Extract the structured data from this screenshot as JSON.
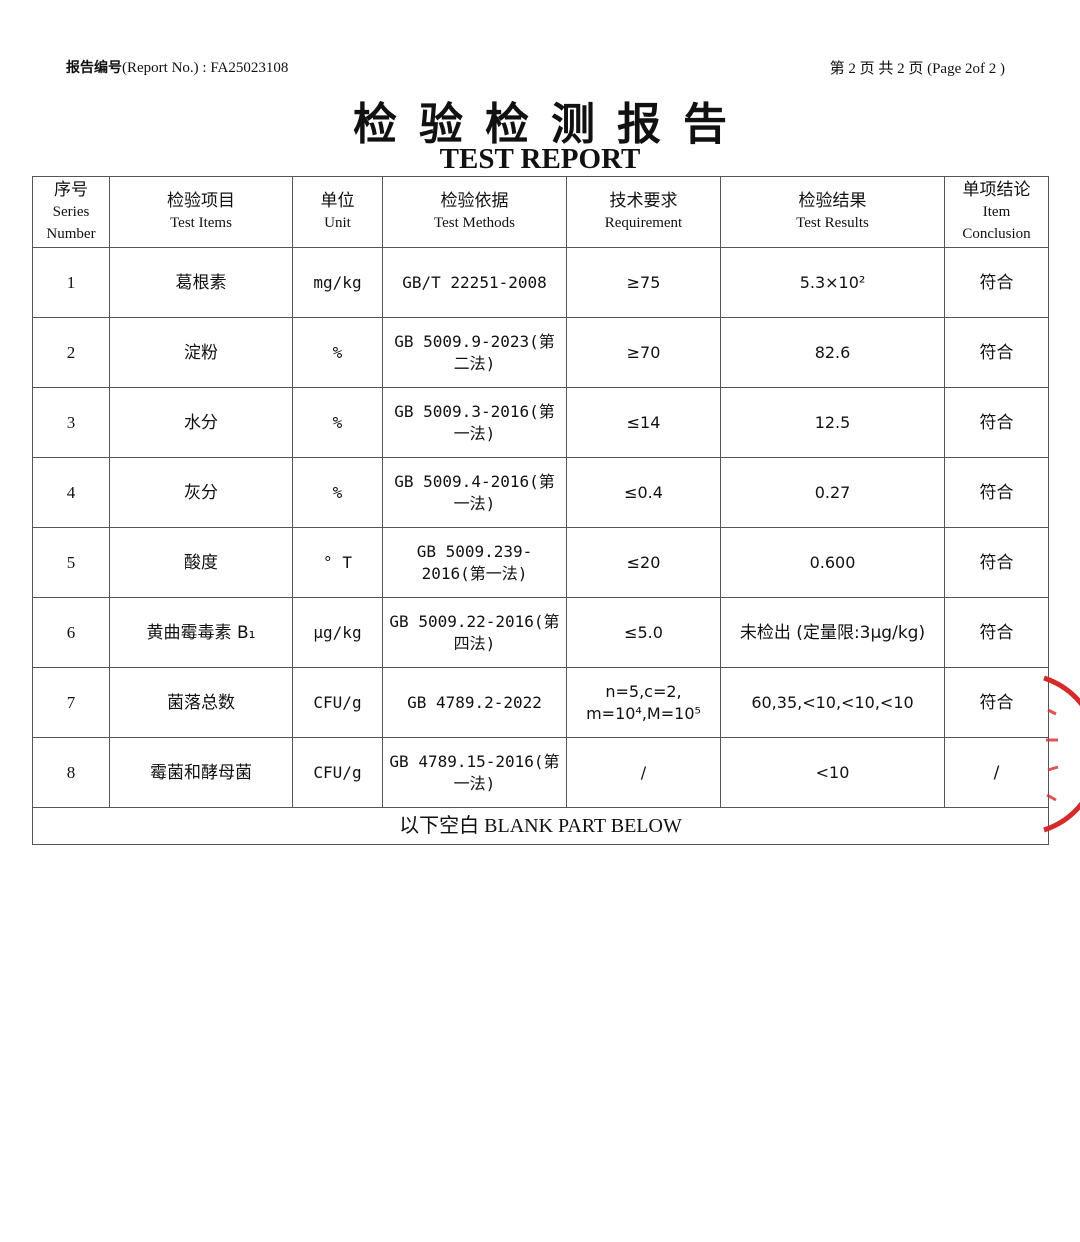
{
  "header": {
    "report_no_label": "报告编号",
    "report_no_en": "(Report No.) : FA25023108",
    "page_info": "第 2 页  共 2 页  (Page 2of 2 )"
  },
  "title": {
    "cn": "检验检测报告",
    "en": "TEST REPORT"
  },
  "table": {
    "columns": [
      {
        "cn": "序号",
        "en": "Series Number"
      },
      {
        "cn": "检验项目",
        "en": "Test Items"
      },
      {
        "cn": "单位",
        "en": "Unit"
      },
      {
        "cn": "检验依据",
        "en": "Test Methods"
      },
      {
        "cn": "技术要求",
        "en": "Requirement"
      },
      {
        "cn": "检验结果",
        "en": "Test Results"
      },
      {
        "cn": "单项结论",
        "en": "Item Conclusion"
      }
    ],
    "rows": [
      {
        "no": "1",
        "item": "葛根素",
        "unit": "mg/kg",
        "method": "GB/T 22251-2008",
        "req": "≥75",
        "result": "5.3×10²",
        "conclusion": "符合"
      },
      {
        "no": "2",
        "item": "淀粉",
        "unit": "%",
        "method": "GB 5009.9-2023(第二法)",
        "req": "≥70",
        "result": "82.6",
        "conclusion": "符合"
      },
      {
        "no": "3",
        "item": "水分",
        "unit": "%",
        "method": "GB 5009.3-2016(第一法)",
        "req": "≤14",
        "result": "12.5",
        "conclusion": "符合"
      },
      {
        "no": "4",
        "item": "灰分",
        "unit": "%",
        "method": "GB 5009.4-2016(第一法)",
        "req": "≤0.4",
        "result": "0.27",
        "conclusion": "符合"
      },
      {
        "no": "5",
        "item": "酸度",
        "unit": "° T",
        "method": "GB 5009.239-2016(第一法)",
        "req": "≤20",
        "result": "0.600",
        "conclusion": "符合"
      },
      {
        "no": "6",
        "item": "黄曲霉毒素 B₁",
        "unit": "μg/kg",
        "method": "GB 5009.22-2016(第四法)",
        "req": "≤5.0",
        "result": "未检出 (定量限:3μg/kg)",
        "conclusion": "符合"
      },
      {
        "no": "7",
        "item": "菌落总数",
        "unit": "CFU/g",
        "method": "GB 4789.2-2022",
        "req": "n=5,c=2, m=10⁴,M=10⁵",
        "result": "60,35,<10,<10,<10",
        "conclusion": "符合"
      },
      {
        "no": "8",
        "item": "霉菌和酵母菌",
        "unit": "CFU/g",
        "method": "GB 4789.15-2016(第一法)",
        "req": "/",
        "result": "<10",
        "conclusion": "/"
      }
    ],
    "footer": "以下空白 BLANK PART BELOW"
  },
  "colors": {
    "stamp": "#d42a2a",
    "border": "#555555"
  }
}
